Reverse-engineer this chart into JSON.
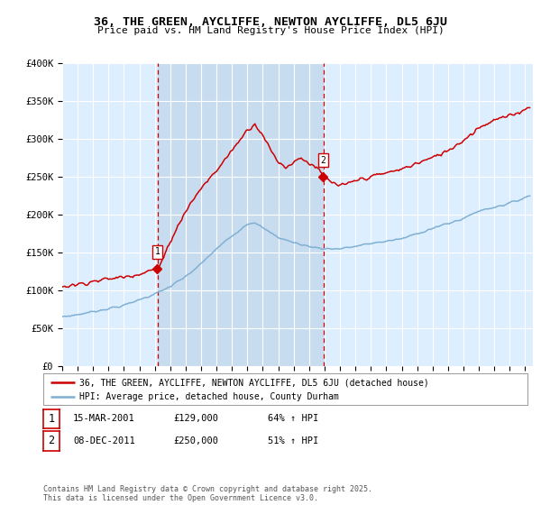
{
  "title": "36, THE GREEN, AYCLIFFE, NEWTON AYCLIFFE, DL5 6JU",
  "subtitle": "Price paid vs. HM Land Registry's House Price Index (HPI)",
  "ylabel_ticks": [
    "£0",
    "£50K",
    "£100K",
    "£150K",
    "£200K",
    "£250K",
    "£300K",
    "£350K",
    "£400K"
  ],
  "ylim": [
    0,
    400000
  ],
  "xlim_start": 1995.0,
  "xlim_end": 2025.5,
  "sale1_date": 2001.2,
  "sale1_price": 129000,
  "sale2_date": 2011.92,
  "sale2_price": 250000,
  "red_line_color": "#cc0000",
  "blue_line_color": "#7fb0d4",
  "dashed_vline_color": "#cc0000",
  "bg_color": "#ddeeff",
  "shade_color": "#c8dcf0",
  "grid_color": "#ffffff",
  "legend_line1": "36, THE GREEN, AYCLIFFE, NEWTON AYCLIFFE, DL5 6JU (detached house)",
  "legend_line2": "HPI: Average price, detached house, County Durham",
  "footnote": "Contains HM Land Registry data © Crown copyright and database right 2025.\nThis data is licensed under the Open Government Licence v3.0.",
  "xticks": [
    1995,
    1996,
    1997,
    1998,
    1999,
    2000,
    2001,
    2002,
    2003,
    2004,
    2005,
    2006,
    2007,
    2008,
    2009,
    2010,
    2011,
    2012,
    2013,
    2014,
    2015,
    2016,
    2017,
    2018,
    2019,
    2020,
    2021,
    2022,
    2023,
    2024,
    2025
  ]
}
